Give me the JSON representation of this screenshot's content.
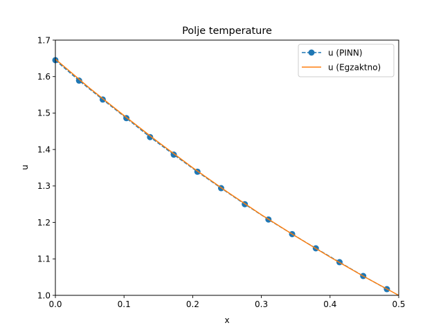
{
  "chart_data": {
    "type": "line",
    "title": "Polje temperature",
    "xlabel": "x",
    "ylabel": "u",
    "xlim": [
      0,
      0.5
    ],
    "ylim": [
      1.0,
      1.7
    ],
    "xticks": [
      0.0,
      0.1,
      0.2,
      0.3,
      0.4,
      0.5
    ],
    "xtick_labels": [
      "0.0",
      "0.1",
      "0.2",
      "0.3",
      "0.4",
      "0.5"
    ],
    "yticks": [
      1.0,
      1.1,
      1.2,
      1.3,
      1.4,
      1.5,
      1.6,
      1.7
    ],
    "ytick_labels": [
      "1.0",
      "1.1",
      "1.2",
      "1.3",
      "1.4",
      "1.5",
      "1.6",
      "1.7"
    ],
    "grid": false,
    "legend_position": "top-right",
    "series": [
      {
        "name": "u (PINN)",
        "style": "dashed-with-markers",
        "color": "#1f77b4",
        "x": [
          0.0,
          0.0345,
          0.069,
          0.1034,
          0.1379,
          0.1724,
          0.2069,
          0.2414,
          0.2759,
          0.3103,
          0.3448,
          0.3793,
          0.4138,
          0.4483,
          0.4828
        ],
        "y": [
          1.645,
          1.589,
          1.537,
          1.486,
          1.434,
          1.386,
          1.339,
          1.294,
          1.25,
          1.208,
          1.168,
          1.129,
          1.091,
          1.053,
          1.017
        ]
      },
      {
        "name": "u (Egzaktno)",
        "style": "solid",
        "color": "#ff7f0e",
        "x": [
          0.0,
          0.05,
          0.1,
          0.15,
          0.2,
          0.25,
          0.3,
          0.35,
          0.4,
          0.45,
          0.5
        ],
        "y": [
          1.648,
          1.568,
          1.493,
          1.42,
          1.35,
          1.284,
          1.221,
          1.162,
          1.105,
          1.051,
          1.0
        ]
      }
    ]
  }
}
